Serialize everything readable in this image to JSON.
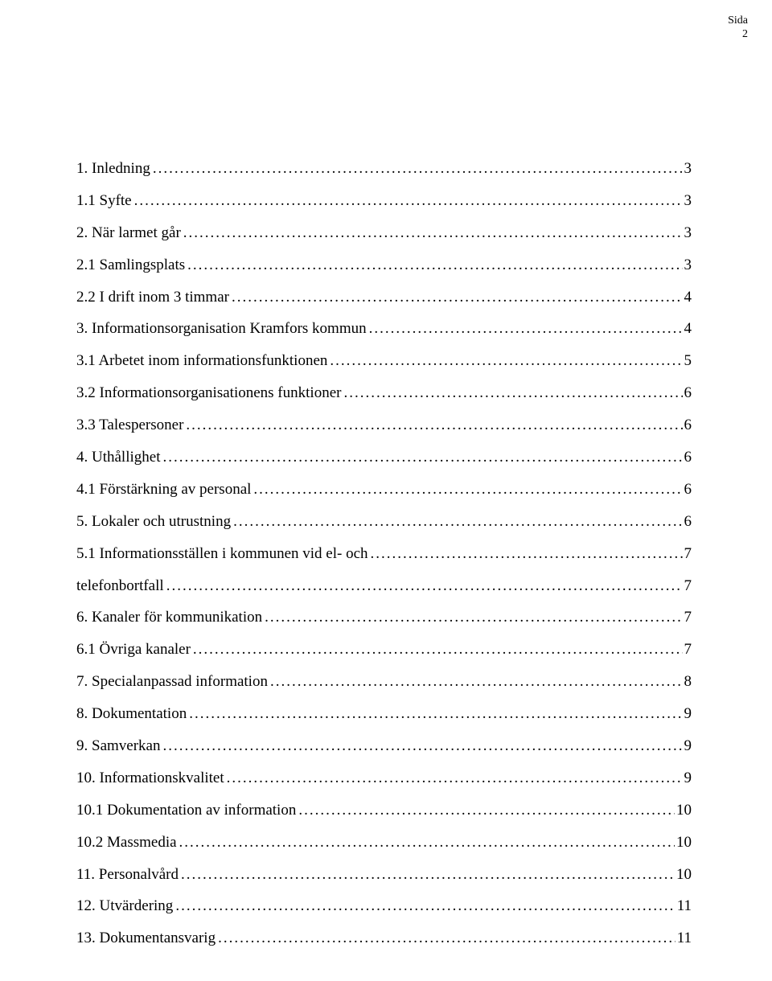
{
  "header": {
    "label": "Sida",
    "page_number": "2"
  },
  "toc": [
    {
      "title": "1. Inledning",
      "page": "3"
    },
    {
      "title": "1.1 Syfte",
      "page": "3"
    },
    {
      "title": "2. När larmet går",
      "page": "3"
    },
    {
      "title": "2.1 Samlingsplats",
      "page": "3"
    },
    {
      "title": "2.2 I drift inom 3 timmar",
      "page": "4"
    },
    {
      "title": "3. Informationsorganisation Kramfors kommun",
      "page": "4"
    },
    {
      "title": "3.1 Arbetet inom informationsfunktionen",
      "page": "5"
    },
    {
      "title": "3.2 Informationsorganisationens funktioner",
      "page": "6"
    },
    {
      "title": "3.3 Talespersoner",
      "page": "6"
    },
    {
      "title": "4. Uthållighet",
      "page": "6"
    },
    {
      "title": "4.1  Förstärkning av personal",
      "page": "6"
    },
    {
      "title": "5. Lokaler och utrustning",
      "page": "6"
    },
    {
      "title": "5.1 Informationsställen i kommunen vid el- och",
      "page": "7"
    },
    {
      "title": "telefonbortfall",
      "page": "7"
    },
    {
      "title": "6. Kanaler för kommunikation",
      "page": "7"
    },
    {
      "title": "6.1 Övriga kanaler",
      "page": "7"
    },
    {
      "title": "7. Specialanpassad information",
      "page": "8"
    },
    {
      "title": "8. Dokumentation",
      "page": "9"
    },
    {
      "title": "9. Samverkan",
      "page": "9"
    },
    {
      "title": "10. Informationskvalitet",
      "page": "9"
    },
    {
      "title": "10.1 Dokumentation av information",
      "page": "10"
    },
    {
      "title": "10.2 Massmedia",
      "page": "10"
    },
    {
      "title": "11. Personalvård",
      "page": "10"
    },
    {
      "title": "12. Utvärdering",
      "page": "11"
    },
    {
      "title": "13. Dokumentansvarig",
      "page": "11"
    }
  ]
}
